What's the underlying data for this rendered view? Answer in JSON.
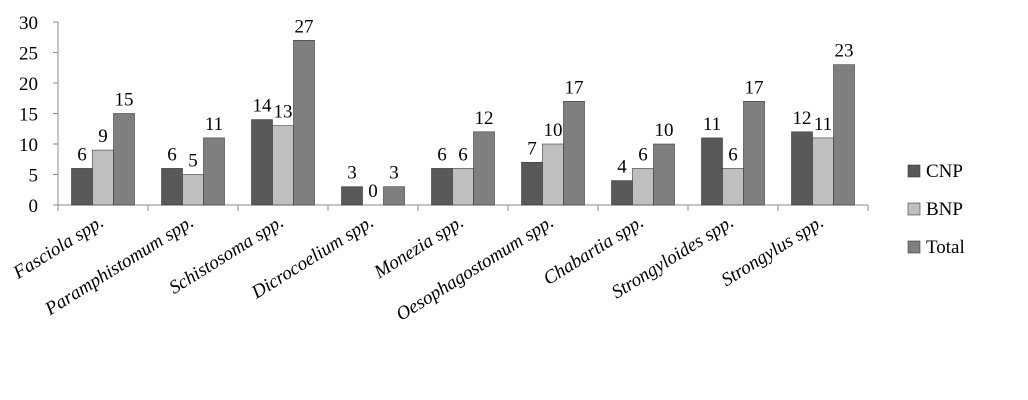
{
  "chart_data": {
    "type": "bar",
    "categories": [
      "Fasciola spp.",
      "Paramphistomum spp.",
      "Schistosoma spp.",
      "Dicrocoelium spp.",
      "Monezia spp.",
      "Oesophagostomum spp.",
      "Chabartia spp.",
      "Strongyloides spp.",
      "Strongylus spp."
    ],
    "series": [
      {
        "name": "CNP",
        "values": [
          6,
          6,
          14,
          3,
          6,
          7,
          4,
          11,
          12
        ],
        "color": "#595959"
      },
      {
        "name": "BNP",
        "values": [
          9,
          5,
          13,
          0,
          6,
          10,
          6,
          6,
          11
        ],
        "color": "#bfbfbf"
      },
      {
        "name": "Total",
        "values": [
          15,
          11,
          27,
          3,
          12,
          17,
          10,
          17,
          23
        ],
        "color": "#7f7f7f"
      }
    ],
    "y_ticks": [
      "0",
      "5",
      "10",
      "15",
      "20",
      "25",
      "30"
    ],
    "ylim": [
      0,
      30
    ],
    "grid": false,
    "legend": "right",
    "title": "",
    "xlabel": "",
    "ylabel": ""
  }
}
